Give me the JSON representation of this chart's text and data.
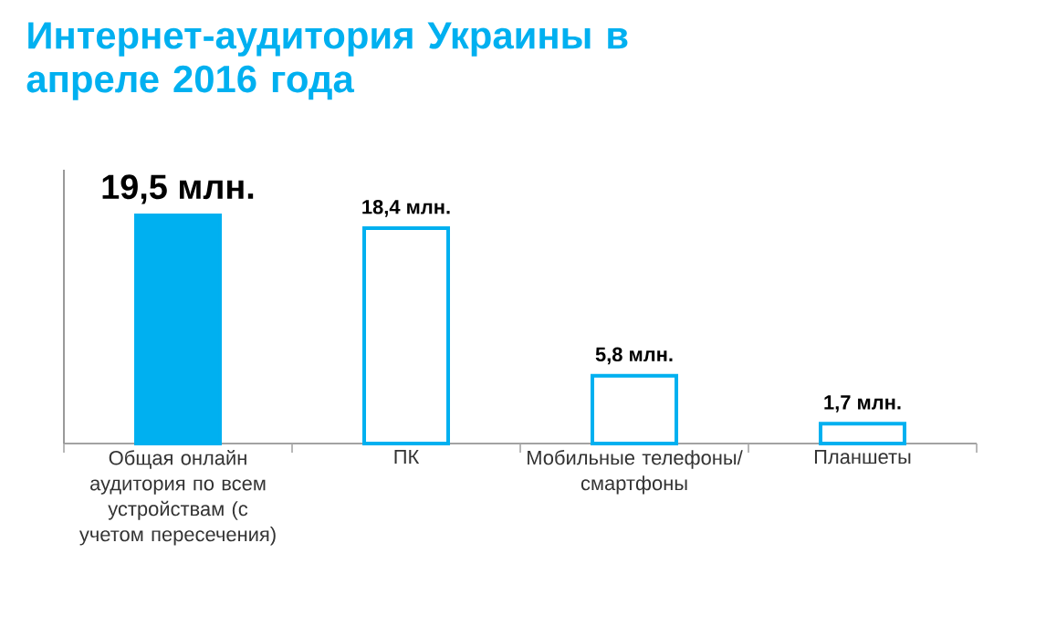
{
  "chart_data": {
    "type": "bar",
    "title": "Интернет-аудитория Украины в апреле 2016 года",
    "categories": [
      "Общая онлайн аудитория по всем устройствам (с учетом пересечения)",
      "ПК",
      "Мобильные телефоны/ смартфоны",
      "Планшеты"
    ],
    "values": [
      19.5,
      18.4,
      5.8,
      1.7
    ],
    "value_labels": [
      "19,5 млн.",
      "18,4 млн.",
      "5,8 млн.",
      "1,7 млн."
    ],
    "color": "#00b0f0",
    "colors": [
      "#00b0f0",
      "#ffffff",
      "#ffffff",
      "#ffffff"
    ],
    "line_style": "solid"
  }
}
